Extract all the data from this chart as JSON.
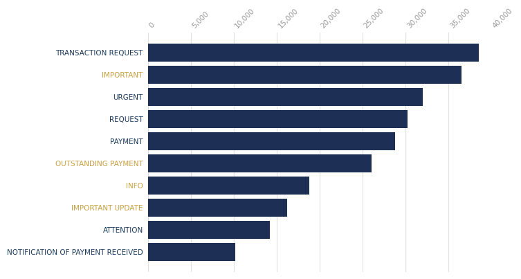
{
  "categories": [
    "NOTIFICATION OF PAYMENT RECEIVED",
    "ATTENTION",
    "IMPORTANT UPDATE",
    "INFO",
    "OUTSTANDING PAYMENT",
    "PAYMENT",
    "REQUEST",
    "URGENT",
    "IMPORTANT",
    "TRANSACTION REQUEST"
  ],
  "values": [
    10200,
    14200,
    16200,
    18800,
    26000,
    28800,
    30200,
    32000,
    36500,
    38500
  ],
  "label_colors": [
    "#1a3a5c",
    "#1a3a5c",
    "#c8a040",
    "#c8a040",
    "#c8a040",
    "#1a3a5c",
    "#1a3a5c",
    "#1a3a5c",
    "#c8a040",
    "#1a3a5c"
  ],
  "bar_color": "#1e2f55",
  "background_color": "#ffffff",
  "grid_color": "#e0e0e0",
  "xlim": [
    0,
    40000
  ],
  "xticks": [
    0,
    5000,
    10000,
    15000,
    20000,
    25000,
    30000,
    35000,
    40000
  ],
  "bar_height": 0.82,
  "label_fontsize": 7.5,
  "tick_fontsize": 7.5
}
